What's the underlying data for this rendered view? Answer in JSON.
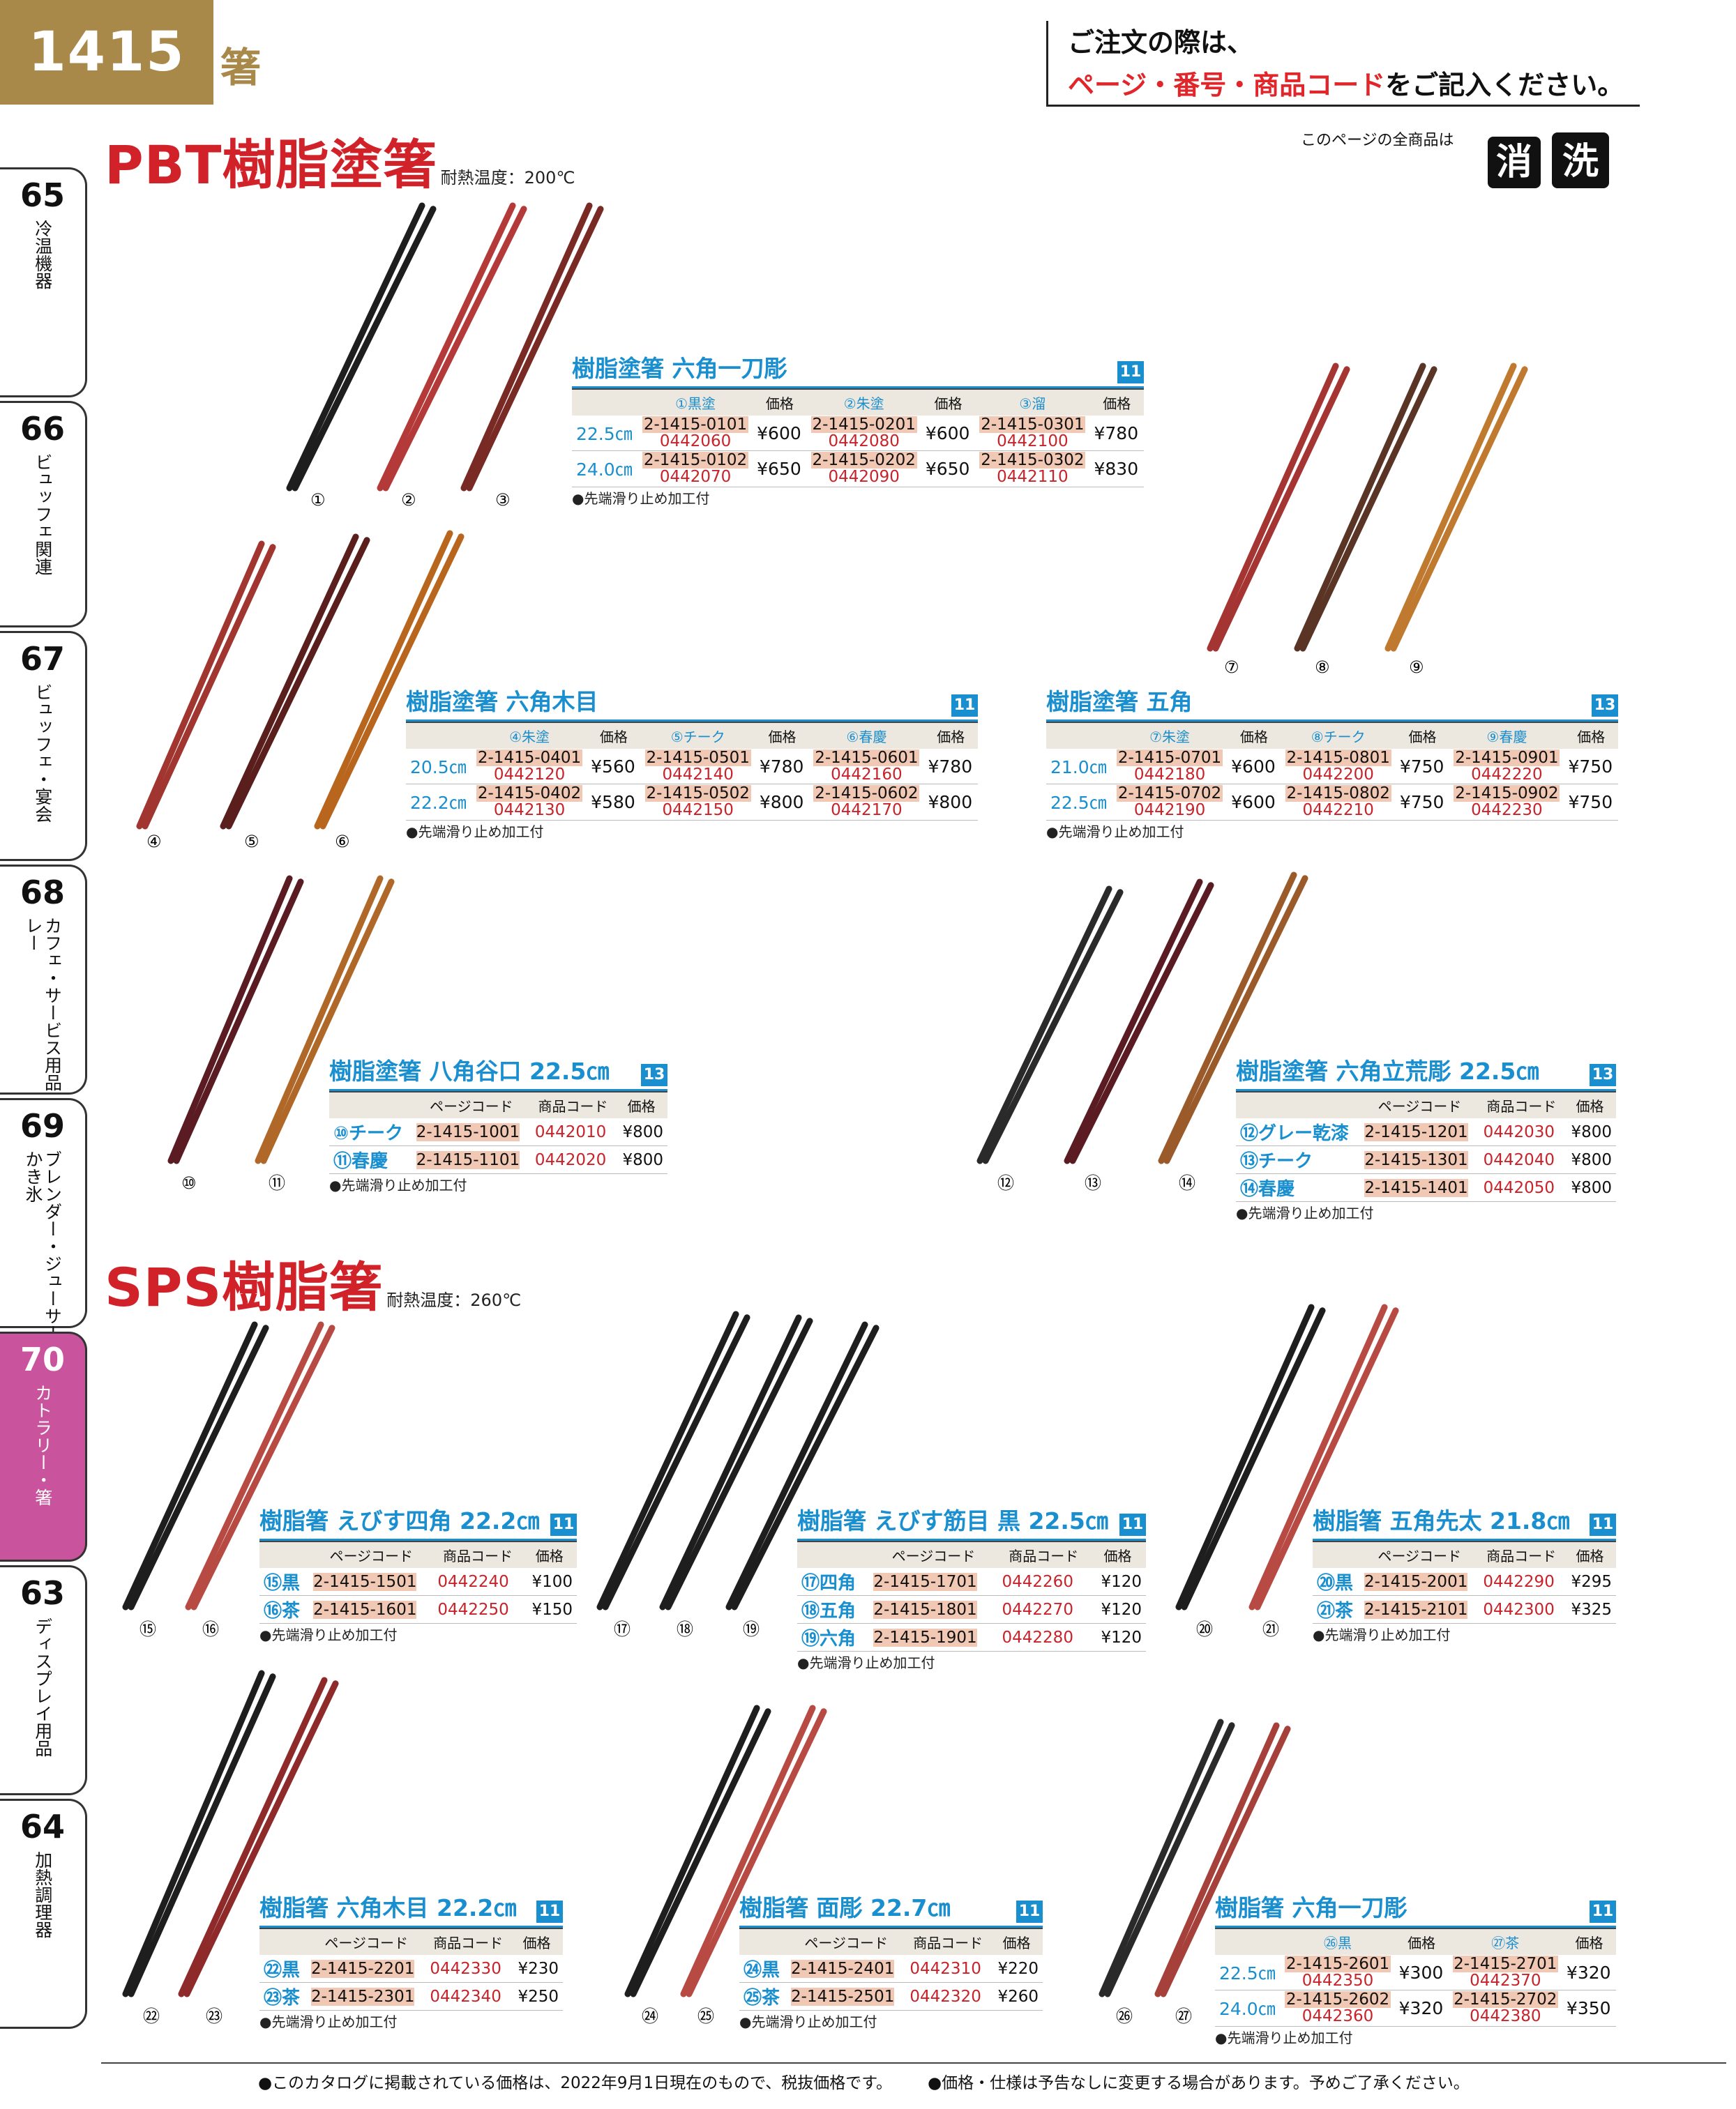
{
  "header": {
    "page_number": "1415",
    "category": "箸",
    "order_note_1": "ご注文の際は、",
    "order_note_2_red": "ページ・番号・商品コード",
    "order_note_2_rest": "をご記入ください。"
  },
  "tabs": [
    {
      "num": "65",
      "label": "冷温機器"
    },
    {
      "num": "66",
      "label": "ビュッフェ関連"
    },
    {
      "num": "67",
      "label": "ビュッフェ・宴会"
    },
    {
      "num": "68",
      "label": "カフェ・サービス用品・トレー"
    },
    {
      "num": "69",
      "label": "ブレンダー・ジューサー・かき氷"
    },
    {
      "num": "70",
      "label": "カトラリー・箸"
    },
    {
      "num": "63",
      "label": "ディスプレイ用品"
    },
    {
      "num": "64",
      "label": "加熱調理器"
    }
  ],
  "pbt": {
    "title": "PBT樹脂塗箸",
    "heat": "耐熱温度：200℃",
    "all_items": "このページの全商品は",
    "icon1": "消",
    "icon2": "洗"
  },
  "sps": {
    "title": "SPS樹脂箸",
    "heat": "耐熱温度：260℃"
  },
  "common": {
    "price": "価格",
    "page_code": "ページコード",
    "product_code": "商品コード",
    "note": "●先端滑り止め加工付"
  },
  "p1": {
    "title": "樹脂塗箸 六角一刀彫",
    "badge": "11",
    "cols": [
      "①黒塗",
      "②朱塗",
      "③溜"
    ],
    "rows": [
      {
        "size": "22.5㎝",
        "items": [
          [
            "2-1415-0101",
            "0442060",
            "¥600"
          ],
          [
            "2-1415-0201",
            "0442080",
            "¥600"
          ],
          [
            "2-1415-0301",
            "0442100",
            "¥780"
          ]
        ]
      },
      {
        "size": "24.0㎝",
        "items": [
          [
            "2-1415-0102",
            "0442070",
            "¥650"
          ],
          [
            "2-1415-0202",
            "0442090",
            "¥650"
          ],
          [
            "2-1415-0302",
            "0442110",
            "¥830"
          ]
        ]
      }
    ]
  },
  "p2": {
    "title": "樹脂塗箸 六角木目",
    "badge": "11",
    "cols": [
      "④朱塗",
      "⑤チーク",
      "⑥春慶"
    ],
    "rows": [
      {
        "size": "20.5㎝",
        "items": [
          [
            "2-1415-0401",
            "0442120",
            "¥560"
          ],
          [
            "2-1415-0501",
            "0442140",
            "¥780"
          ],
          [
            "2-1415-0601",
            "0442160",
            "¥780"
          ]
        ]
      },
      {
        "size": "22.2㎝",
        "items": [
          [
            "2-1415-0402",
            "0442130",
            "¥580"
          ],
          [
            "2-1415-0502",
            "0442150",
            "¥800"
          ],
          [
            "2-1415-0602",
            "0442170",
            "¥800"
          ]
        ]
      }
    ]
  },
  "p3": {
    "title": "樹脂塗箸 五角",
    "badge": "13",
    "cols": [
      "⑦朱塗",
      "⑧チーク",
      "⑨春慶"
    ],
    "rows": [
      {
        "size": "21.0㎝",
        "items": [
          [
            "2-1415-0701",
            "0442180",
            "¥600"
          ],
          [
            "2-1415-0801",
            "0442200",
            "¥750"
          ],
          [
            "2-1415-0901",
            "0442220",
            "¥750"
          ]
        ]
      },
      {
        "size": "22.5㎝",
        "items": [
          [
            "2-1415-0702",
            "0442190",
            "¥600"
          ],
          [
            "2-1415-0802",
            "0442210",
            "¥750"
          ],
          [
            "2-1415-0902",
            "0442230",
            "¥750"
          ]
        ]
      }
    ]
  },
  "p4": {
    "title": "樹脂塗箸 八角谷口 22.5㎝",
    "badge": "13",
    "rows": [
      [
        "⑩チーク",
        "2-1415-1001",
        "0442010",
        "¥800"
      ],
      [
        "⑪春慶",
        "2-1415-1101",
        "0442020",
        "¥800"
      ]
    ]
  },
  "p5": {
    "title": "樹脂塗箸 六角立荒彫 22.5㎝",
    "badge": "13",
    "rows": [
      [
        "⑫グレー乾漆",
        "2-1415-1201",
        "0442030",
        "¥800"
      ],
      [
        "⑬チーク",
        "2-1415-1301",
        "0442040",
        "¥800"
      ],
      [
        "⑭春慶",
        "2-1415-1401",
        "0442050",
        "¥800"
      ]
    ]
  },
  "p6": {
    "title": "樹脂箸 えびす四角 22.2㎝",
    "badge": "11",
    "rows": [
      [
        "⑮黒",
        "2-1415-1501",
        "0442240",
        "¥100"
      ],
      [
        "⑯茶",
        "2-1415-1601",
        "0442250",
        "¥150"
      ]
    ]
  },
  "p7": {
    "title": "樹脂箸 えびす筋目 黒 22.5㎝",
    "badge": "11",
    "rows": [
      [
        "⑰四角",
        "2-1415-1701",
        "0442260",
        "¥120"
      ],
      [
        "⑱五角",
        "2-1415-1801",
        "0442270",
        "¥120"
      ],
      [
        "⑲六角",
        "2-1415-1901",
        "0442280",
        "¥120"
      ]
    ]
  },
  "p8": {
    "title": "樹脂箸 五角先太 21.8㎝",
    "badge": "11",
    "rows": [
      [
        "⑳黒",
        "2-1415-2001",
        "0442290",
        "¥295"
      ],
      [
        "㉑茶",
        "2-1415-2101",
        "0442300",
        "¥325"
      ]
    ]
  },
  "p9": {
    "title": "樹脂箸 六角木目 22.2㎝",
    "badge": "11",
    "rows": [
      [
        "㉒黒",
        "2-1415-2201",
        "0442330",
        "¥230"
      ],
      [
        "㉓茶",
        "2-1415-2301",
        "0442340",
        "¥250"
      ]
    ]
  },
  "p10": {
    "title": "樹脂箸 面彫 22.7㎝",
    "badge": "11",
    "rows": [
      [
        "㉔黒",
        "2-1415-2401",
        "0442310",
        "¥220"
      ],
      [
        "㉕茶",
        "2-1415-2501",
        "0442320",
        "¥260"
      ]
    ]
  },
  "p11": {
    "title": "樹脂箸 六角一刀彫",
    "badge": "11",
    "cols": [
      "㉖黒",
      "㉗茶"
    ],
    "rows": [
      {
        "size": "22.5㎝",
        "items": [
          [
            "2-1415-2601",
            "0442350",
            "¥300"
          ],
          [
            "2-1415-2701",
            "0442370",
            "¥320"
          ]
        ]
      },
      {
        "size": "24.0㎝",
        "items": [
          [
            "2-1415-2602",
            "0442360",
            "¥320"
          ],
          [
            "2-1415-2702",
            "0442380",
            "¥350"
          ]
        ]
      }
    ]
  },
  "num_labels": [
    "①",
    "②",
    "③",
    "④",
    "⑤",
    "⑥",
    "⑦",
    "⑧",
    "⑨",
    "⑩",
    "⑪",
    "⑫",
    "⑬",
    "⑭",
    "⑮",
    "⑯",
    "⑰",
    "⑱",
    "⑲",
    "⑳",
    "㉑",
    "㉒",
    "㉓",
    "㉔",
    "㉕",
    "㉖",
    "㉗"
  ],
  "footer": {
    "left": "●このカタログに掲載されている価格は、2022年9月1日現在のもので、税抜価格です。",
    "right": "●価格・仕様は予告なしに変更する場合があります。予めご了承ください。"
  },
  "colors": {
    "red": "#d1222a",
    "blue": "#1a8fcf",
    "gold": "#a8894a",
    "tab_active": "#c9539d",
    "code_bg": "#f1c8b3"
  }
}
